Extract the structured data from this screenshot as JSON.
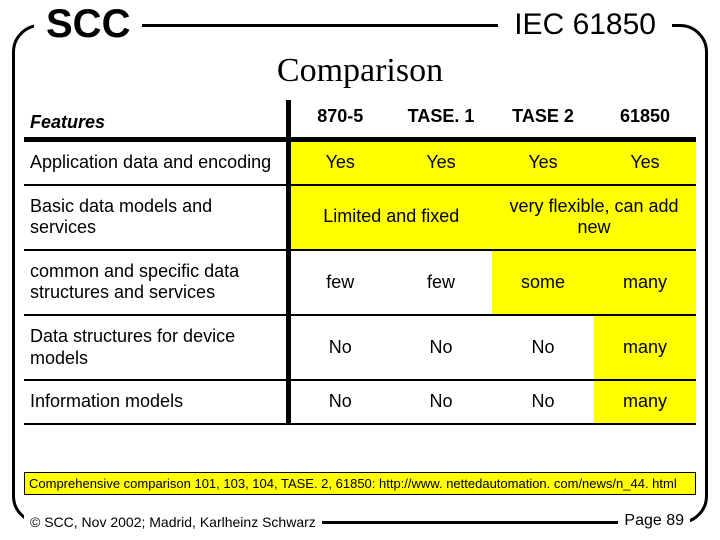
{
  "header": {
    "scc": "SCC",
    "iec": "IEC 61850",
    "title": "Comparison"
  },
  "table": {
    "features_label": "Features",
    "columns": [
      "870-5",
      "TASE. 1",
      "TASE 2",
      "61850"
    ],
    "rows": [
      {
        "feature": "Application data and encoding",
        "cells": [
          {
            "text": "Yes",
            "hi": true,
            "span": 1
          },
          {
            "text": "Yes",
            "hi": true,
            "span": 1
          },
          {
            "text": "Yes",
            "hi": true,
            "span": 1
          },
          {
            "text": "Yes",
            "hi": true,
            "span": 1
          }
        ]
      },
      {
        "feature": "Basic data models and services",
        "cells": [
          {
            "text": "Limited and fixed",
            "hi": true,
            "span": 2
          },
          {
            "text": "very flexible, can add new",
            "hi": true,
            "span": 2
          }
        ]
      },
      {
        "feature": "common and specific data structures and services",
        "cells": [
          {
            "text": "few",
            "hi": false,
            "span": 1
          },
          {
            "text": "few",
            "hi": false,
            "span": 1
          },
          {
            "text": "some",
            "hi": true,
            "span": 1
          },
          {
            "text": "many",
            "hi": true,
            "span": 1
          }
        ]
      },
      {
        "feature": "Data structures for device models",
        "cells": [
          {
            "text": "No",
            "hi": false,
            "span": 1
          },
          {
            "text": "No",
            "hi": false,
            "span": 1
          },
          {
            "text": "No",
            "hi": false,
            "span": 1
          },
          {
            "text": "many",
            "hi": true,
            "span": 1
          }
        ]
      },
      {
        "feature": "Information models",
        "cells": [
          {
            "text": "No",
            "hi": false,
            "span": 1
          },
          {
            "text": "No",
            "hi": false,
            "span": 1
          },
          {
            "text": "No",
            "hi": false,
            "span": 1
          },
          {
            "text": "many",
            "hi": true,
            "span": 1
          }
        ]
      }
    ]
  },
  "footnote": "Comprehensive comparison 101, 103, 104, TASE. 2, 61850: http://www. nettedautomation. com/news/n_44. html",
  "footer": {
    "copyright": "© SCC, Nov 2002; Madrid, Karlheinz Schwarz",
    "page": "Page 89"
  },
  "colors": {
    "highlight": "#ffff00",
    "border": "#000000",
    "bg": "#ffffff"
  }
}
